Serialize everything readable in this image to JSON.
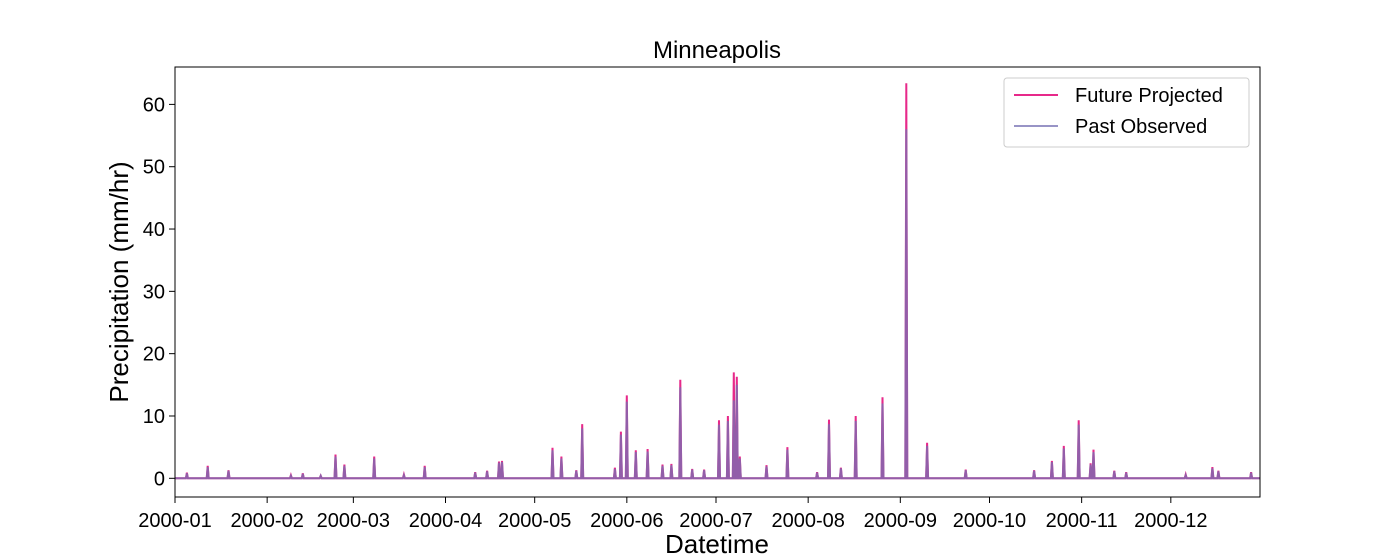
{
  "chart_data": {
    "type": "line",
    "title": "Minneapolis",
    "xlabel": "Datetime",
    "ylabel": "Precipitation (mm/hr)",
    "xlim": [
      "2000-01-01",
      "2000-12-31"
    ],
    "ylim": [
      -3,
      66
    ],
    "x_ticks": [
      "2000-01",
      "2000-02",
      "2000-03",
      "2000-04",
      "2000-05",
      "2000-06",
      "2000-07",
      "2000-08",
      "2000-09",
      "2000-10",
      "2000-11",
      "2000-12"
    ],
    "y_ticks": [
      0,
      10,
      20,
      30,
      40,
      50,
      60
    ],
    "legend_position": "top-right",
    "grid": false,
    "series": [
      {
        "name": "Future Projected",
        "color": "#e7298a",
        "peaks": [
          {
            "x": "2000-01-05",
            "y": 0.9
          },
          {
            "x": "2000-01-12",
            "y": 2.0
          },
          {
            "x": "2000-01-19",
            "y": 1.3
          },
          {
            "x": "2000-02-09",
            "y": 0.5
          },
          {
            "x": "2000-02-13",
            "y": 0.8
          },
          {
            "x": "2000-02-19",
            "y": 0.4
          },
          {
            "x": "2000-02-24",
            "y": 3.8
          },
          {
            "x": "2000-02-27",
            "y": 2.2
          },
          {
            "x": "2000-03-08",
            "y": 3.5
          },
          {
            "x": "2000-03-18",
            "y": 0.6
          },
          {
            "x": "2000-03-25",
            "y": 2.0
          },
          {
            "x": "2000-04-11",
            "y": 1.0
          },
          {
            "x": "2000-04-15",
            "y": 1.2
          },
          {
            "x": "2000-04-19",
            "y": 2.7
          },
          {
            "x": "2000-04-20",
            "y": 2.8
          },
          {
            "x": "2000-05-07",
            "y": 4.9
          },
          {
            "x": "2000-05-10",
            "y": 3.5
          },
          {
            "x": "2000-05-15",
            "y": 1.3
          },
          {
            "x": "2000-05-17",
            "y": 8.7
          },
          {
            "x": "2000-05-28",
            "y": 1.7
          },
          {
            "x": "2000-05-30",
            "y": 7.5
          },
          {
            "x": "2000-06-01",
            "y": 13.3
          },
          {
            "x": "2000-06-04",
            "y": 4.5
          },
          {
            "x": "2000-06-08",
            "y": 4.7
          },
          {
            "x": "2000-06-13",
            "y": 2.2
          },
          {
            "x": "2000-06-16",
            "y": 2.3
          },
          {
            "x": "2000-06-19",
            "y": 15.8
          },
          {
            "x": "2000-06-23",
            "y": 1.5
          },
          {
            "x": "2000-06-27",
            "y": 1.4
          },
          {
            "x": "2000-07-02",
            "y": 9.3
          },
          {
            "x": "2000-07-05",
            "y": 10.0
          },
          {
            "x": "2000-07-07",
            "y": 17.0
          },
          {
            "x": "2000-07-08",
            "y": 16.3
          },
          {
            "x": "2000-07-09",
            "y": 3.5
          },
          {
            "x": "2000-07-18",
            "y": 2.1
          },
          {
            "x": "2000-07-25",
            "y": 5.0
          },
          {
            "x": "2000-08-04",
            "y": 1.0
          },
          {
            "x": "2000-08-08",
            "y": 9.4
          },
          {
            "x": "2000-08-12",
            "y": 1.7
          },
          {
            "x": "2000-08-17",
            "y": 10.0
          },
          {
            "x": "2000-08-26",
            "y": 13.0
          },
          {
            "x": "2000-09-03",
            "y": 63.4
          },
          {
            "x": "2000-09-10",
            "y": 5.7
          },
          {
            "x": "2000-09-23",
            "y": 1.4
          },
          {
            "x": "2000-10-16",
            "y": 1.3
          },
          {
            "x": "2000-10-22",
            "y": 2.8
          },
          {
            "x": "2000-10-26",
            "y": 5.2
          },
          {
            "x": "2000-10-31",
            "y": 9.3
          },
          {
            "x": "2000-11-04",
            "y": 2.4
          },
          {
            "x": "2000-11-05",
            "y": 4.6
          },
          {
            "x": "2000-11-12",
            "y": 1.2
          },
          {
            "x": "2000-11-16",
            "y": 1.0
          },
          {
            "x": "2000-12-06",
            "y": 0.6
          },
          {
            "x": "2000-12-15",
            "y": 1.8
          },
          {
            "x": "2000-12-17",
            "y": 1.2
          },
          {
            "x": "2000-12-28",
            "y": 1.0
          }
        ]
      },
      {
        "name": "Past Observed",
        "color": "#7570b3",
        "peaks": [
          {
            "x": "2000-01-05",
            "y": 0.8
          },
          {
            "x": "2000-01-12",
            "y": 1.8
          },
          {
            "x": "2000-01-19",
            "y": 1.2
          },
          {
            "x": "2000-02-09",
            "y": 0.4
          },
          {
            "x": "2000-02-13",
            "y": 0.7
          },
          {
            "x": "2000-02-19",
            "y": 0.4
          },
          {
            "x": "2000-02-24",
            "y": 3.5
          },
          {
            "x": "2000-02-27",
            "y": 2.0
          },
          {
            "x": "2000-03-08",
            "y": 3.2
          },
          {
            "x": "2000-03-18",
            "y": 0.5
          },
          {
            "x": "2000-03-25",
            "y": 1.8
          },
          {
            "x": "2000-04-11",
            "y": 0.9
          },
          {
            "x": "2000-04-15",
            "y": 1.1
          },
          {
            "x": "2000-04-19",
            "y": 2.5
          },
          {
            "x": "2000-04-20",
            "y": 2.6
          },
          {
            "x": "2000-05-07",
            "y": 4.5
          },
          {
            "x": "2000-05-10",
            "y": 3.2
          },
          {
            "x": "2000-05-15",
            "y": 1.2
          },
          {
            "x": "2000-05-17",
            "y": 8.0
          },
          {
            "x": "2000-05-28",
            "y": 1.5
          },
          {
            "x": "2000-05-30",
            "y": 7.0
          },
          {
            "x": "2000-06-01",
            "y": 12.3
          },
          {
            "x": "2000-06-04",
            "y": 4.2
          },
          {
            "x": "2000-06-08",
            "y": 4.3
          },
          {
            "x": "2000-06-13",
            "y": 2.0
          },
          {
            "x": "2000-06-16",
            "y": 2.1
          },
          {
            "x": "2000-06-19",
            "y": 14.6
          },
          {
            "x": "2000-06-23",
            "y": 1.4
          },
          {
            "x": "2000-06-27",
            "y": 1.3
          },
          {
            "x": "2000-07-02",
            "y": 8.6
          },
          {
            "x": "2000-07-05",
            "y": 9.2
          },
          {
            "x": "2000-07-07",
            "y": 12.5
          },
          {
            "x": "2000-07-08",
            "y": 15.0
          },
          {
            "x": "2000-07-09",
            "y": 3.2
          },
          {
            "x": "2000-07-18",
            "y": 1.9
          },
          {
            "x": "2000-07-25",
            "y": 4.6
          },
          {
            "x": "2000-08-04",
            "y": 0.9
          },
          {
            "x": "2000-08-08",
            "y": 8.7
          },
          {
            "x": "2000-08-12",
            "y": 1.6
          },
          {
            "x": "2000-08-17",
            "y": 9.2
          },
          {
            "x": "2000-08-26",
            "y": 12.0
          },
          {
            "x": "2000-09-03",
            "y": 56.0
          },
          {
            "x": "2000-09-10",
            "y": 5.2
          },
          {
            "x": "2000-09-23",
            "y": 1.3
          },
          {
            "x": "2000-10-16",
            "y": 1.2
          },
          {
            "x": "2000-10-22",
            "y": 2.6
          },
          {
            "x": "2000-10-26",
            "y": 4.8
          },
          {
            "x": "2000-10-31",
            "y": 8.6
          },
          {
            "x": "2000-11-04",
            "y": 2.2
          },
          {
            "x": "2000-11-05",
            "y": 4.2
          },
          {
            "x": "2000-11-12",
            "y": 1.1
          },
          {
            "x": "2000-11-16",
            "y": 0.9
          },
          {
            "x": "2000-12-06",
            "y": 0.5
          },
          {
            "x": "2000-12-15",
            "y": 1.6
          },
          {
            "x": "2000-12-17",
            "y": 1.1
          },
          {
            "x": "2000-12-28",
            "y": 0.9
          }
        ]
      }
    ]
  }
}
